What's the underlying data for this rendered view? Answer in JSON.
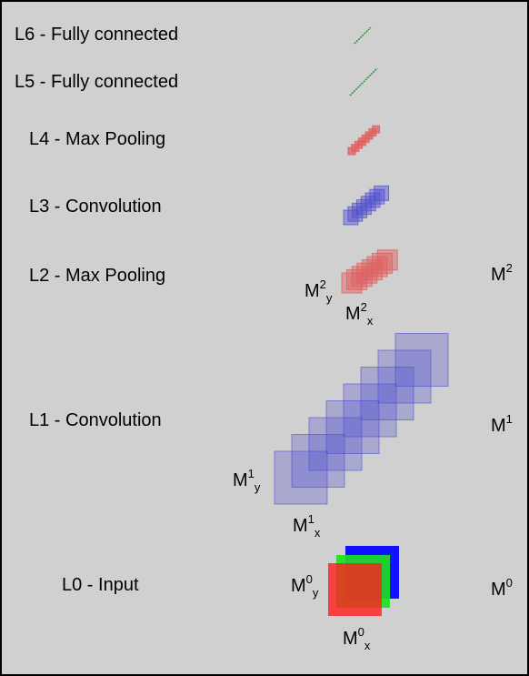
{
  "layers": [
    {
      "id": "L6",
      "label": "L6 - Fully connected"
    },
    {
      "id": "L5",
      "label": "L5 - Fully connected"
    },
    {
      "id": "L4",
      "label": "L4 - Max Pooling"
    },
    {
      "id": "L3",
      "label": "L3 - Convolution"
    },
    {
      "id": "L2",
      "label": "L2 - Max Pooling"
    },
    {
      "id": "L1",
      "label": "L1 - Convolution"
    },
    {
      "id": "L0",
      "label": "L0 - Input"
    }
  ],
  "maps": {
    "M2": {
      "base": "M",
      "sup": "2",
      "y_sub": "y",
      "x_sub": "x"
    },
    "M1": {
      "base": "M",
      "sup": "1",
      "y_sub": "y",
      "x_sub": "x"
    },
    "M0": {
      "base": "M",
      "sup": "0",
      "y_sub": "y",
      "x_sub": "x"
    }
  },
  "colors": {
    "background": "#d0d0d0",
    "fc": "#2e8b2e",
    "pool": "#e06060",
    "conv": "#4f4fd0",
    "input_red": "#ff2020",
    "input_green": "#20e020",
    "input_blue": "#1010ff"
  }
}
